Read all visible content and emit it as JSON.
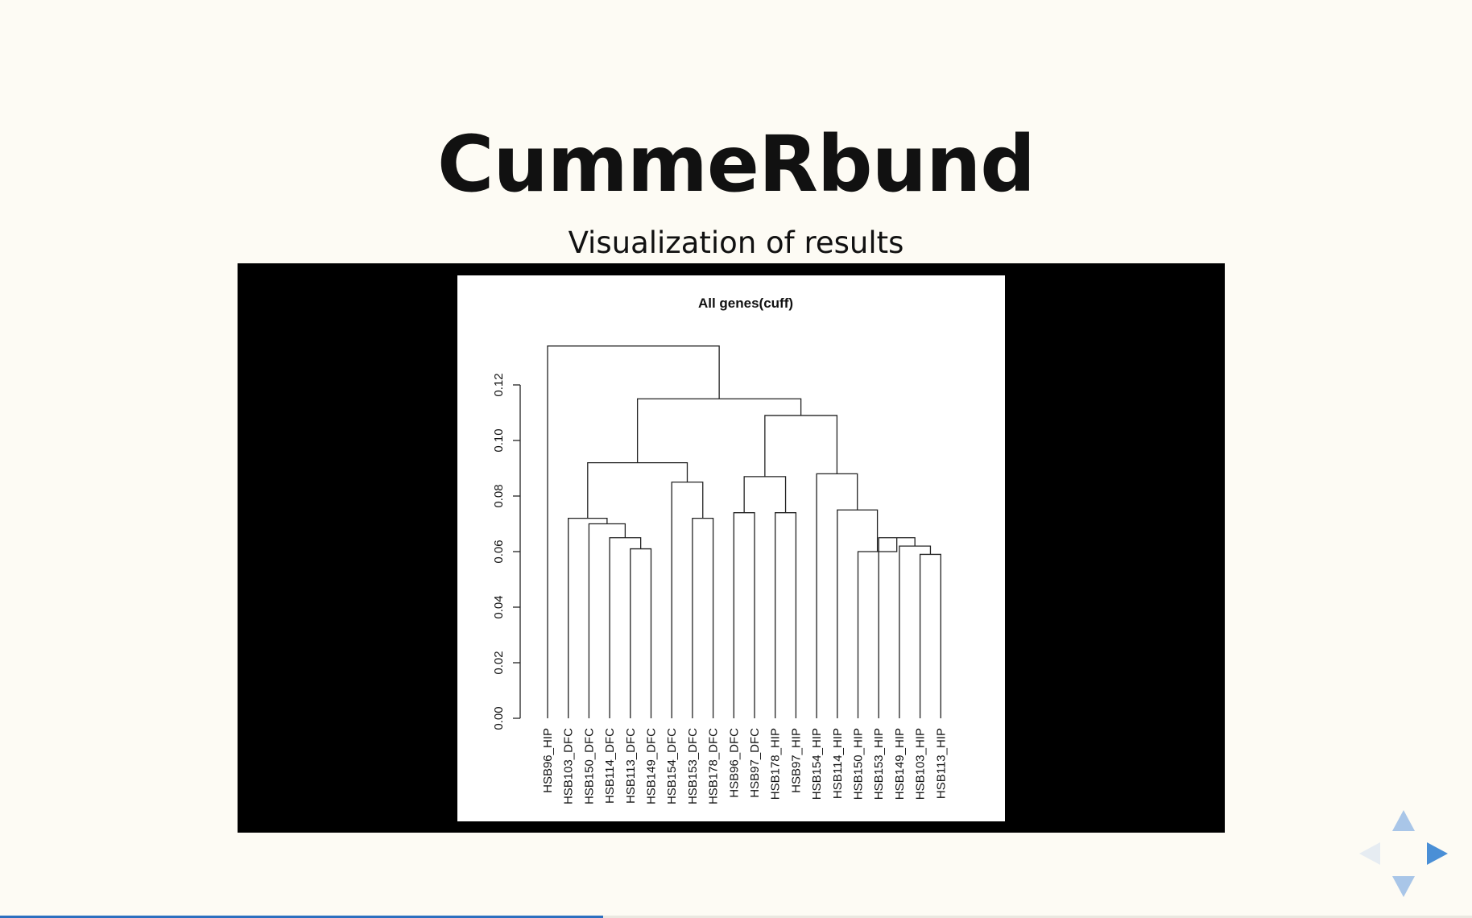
{
  "slide": {
    "title": "CummeRbund",
    "subtitle": "Visualization of results"
  },
  "chart_data": {
    "type": "dendrogram",
    "title": "All genes(cuff)",
    "ylim": [
      0,
      0.12
    ],
    "yticks": [
      "0.00",
      "0.02",
      "0.04",
      "0.06",
      "0.08",
      "0.10",
      "0.12"
    ],
    "leaves": [
      "HSB96_HIP",
      "HSB103_DFC",
      "HSB150_DFC",
      "HSB114_DFC",
      "HSB113_DFC",
      "HSB149_DFC",
      "HSB154_DFC",
      "HSB153_DFC",
      "HSB178_DFC",
      "HSB96_DFC",
      "HSB97_DFC",
      "HSB178_HIP",
      "HSB97_HIP",
      "HSB154_HIP",
      "HSB114_HIP",
      "HSB150_HIP",
      "HSB153_HIP",
      "HSB149_HIP",
      "HSB103_HIP",
      "HSB113_HIP"
    ],
    "merges": [
      {
        "id": "a",
        "children": [
          "HSB113_HIP",
          "HSB103_HIP"
        ],
        "height": 0.059
      },
      {
        "id": "b",
        "children": [
          "HSB149_HIP",
          "a"
        ],
        "height": 0.062
      },
      {
        "id": "c",
        "children": [
          "HSB153_HIP",
          "b"
        ],
        "height": 0.065
      },
      {
        "id": "d",
        "children": [
          "HSB150_HIP",
          "c"
        ],
        "height": 0.06
      },
      {
        "id": "e",
        "children": [
          "HSB114_HIP",
          "d"
        ],
        "height": 0.075
      },
      {
        "id": "f",
        "children": [
          "HSB154_HIP",
          "e"
        ],
        "height": 0.088
      },
      {
        "id": "g",
        "children": [
          "HSB149_DFC",
          "HSB113_DFC"
        ],
        "height": 0.061
      },
      {
        "id": "h",
        "children": [
          "HSB114_DFC",
          "g"
        ],
        "height": 0.065
      },
      {
        "id": "i",
        "children": [
          "HSB150_DFC",
          "h"
        ],
        "height": 0.07
      },
      {
        "id": "j",
        "children": [
          "HSB103_DFC",
          "i"
        ],
        "height": 0.072
      },
      {
        "id": "k",
        "children": [
          "HSB153_DFC",
          "HSB178_DFC"
        ],
        "height": 0.072
      },
      {
        "id": "l",
        "children": [
          "HSB154_DFC",
          "k"
        ],
        "height": 0.085
      },
      {
        "id": "m",
        "children": [
          "j",
          "l"
        ],
        "height": 0.092
      },
      {
        "id": "n",
        "children": [
          "HSB96_DFC",
          "HSB97_DFC"
        ],
        "height": 0.074
      },
      {
        "id": "o",
        "children": [
          "HSB178_HIP",
          "HSB97_HIP"
        ],
        "height": 0.074
      },
      {
        "id": "p",
        "children": [
          "n",
          "o"
        ],
        "height": 0.087
      },
      {
        "id": "q",
        "children": [
          "p",
          "f"
        ],
        "height": 0.109
      },
      {
        "id": "r",
        "children": [
          "m",
          "q"
        ],
        "height": 0.115
      },
      {
        "id": "s",
        "children": [
          "HSB96_HIP",
          "r"
        ],
        "height": 0.134
      }
    ]
  },
  "navigation": {
    "up_icon": "arrow-up-icon",
    "down_icon": "arrow-down-icon",
    "left_icon": "arrow-left-icon",
    "right_icon": "arrow-right-icon",
    "active_color": "#4a8fd6",
    "inactive_color": "#a9c6e8",
    "disabled_color": "#e6ecf2"
  },
  "progress": {
    "fraction": 0.41,
    "color": "#2c6fbf"
  }
}
